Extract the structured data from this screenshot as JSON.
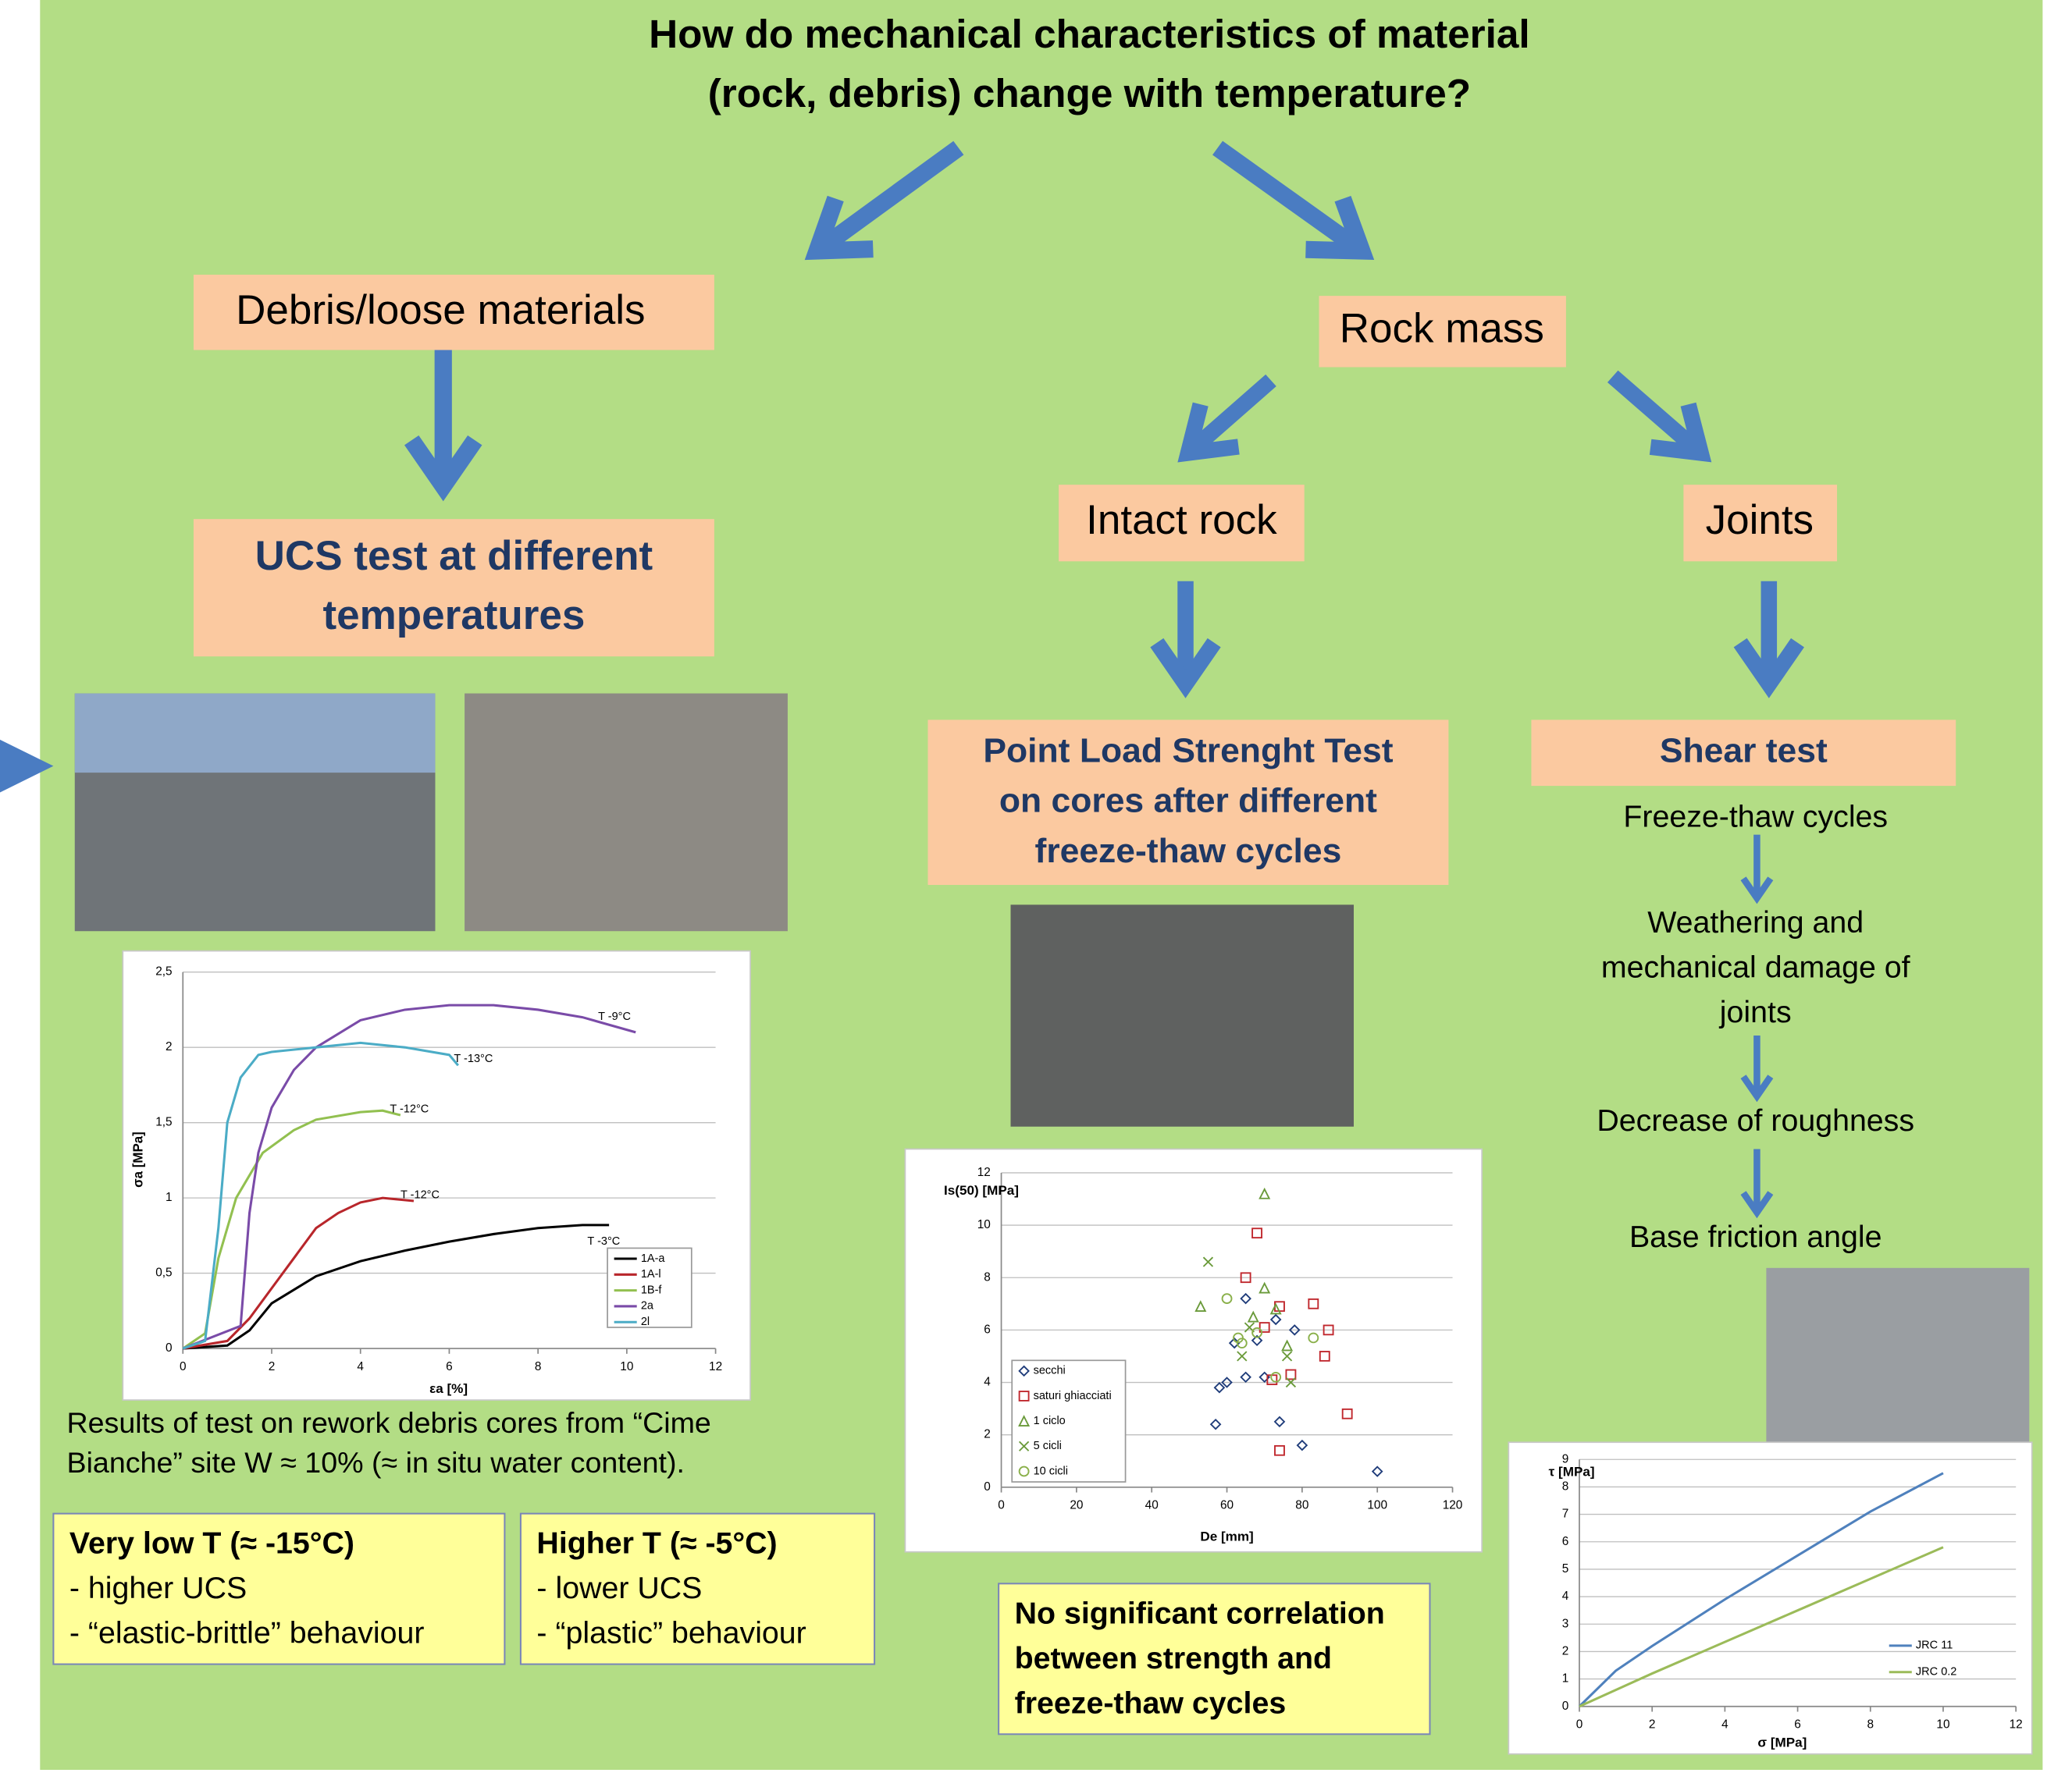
{
  "title": {
    "lines": [
      "How do mechanical characteristics of material",
      "(rock, debris) change with temperature?"
    ]
  },
  "branches": {
    "debris": "Debris/loose materials",
    "rock_mass": "Rock mass",
    "intact_rock": "Intact rock",
    "joints": "Joints"
  },
  "tests": {
    "ucs": [
      "UCS  test at different",
      "temperatures"
    ],
    "point_load": [
      "Point Load Strenght Test",
      "on cores after different",
      "freeze-thaw cycles"
    ],
    "shear": "Shear test"
  },
  "joint_steps": [
    [
      "Freeze-thaw cycles"
    ],
    [
      "Weathering and",
      "mechanical damage of",
      "joints"
    ],
    [
      "Decrease of roughness"
    ],
    [
      "Base friction angle"
    ]
  ],
  "caption": [
    "Results of test on rework debris cores from “Cime",
    "Bianche” site W ≈ 10% (≈ in situ water content)."
  ],
  "low_t": {
    "heading": "Very low T (≈ -15°C)",
    "items": [
      " - higher UCS",
      "- “elastic-brittle” behaviour"
    ]
  },
  "high_t": {
    "heading": "Higher T  (≈ -5°C)",
    "items": [
      " - lower UCS",
      "- “plastic” behaviour"
    ]
  },
  "conclusion": [
    "No significant correlation",
    "between   strength   and",
    "freeze-thaw cycles"
  ],
  "charts": [
    {
      "type": "line",
      "x_label": "εa [%]",
      "y_label": "σa [MPa]",
      "xlim": [
        0,
        12
      ],
      "xticks": [
        0,
        2,
        4,
        6,
        8,
        10,
        12
      ],
      "ylim": [
        0,
        2.5
      ],
      "yticks": [
        0,
        {
          "value": 0.5,
          "label": "0,5"
        },
        1,
        {
          "value": 1.5,
          "label": "1,5"
        },
        2,
        {
          "value": 2.5,
          "label": "2,5"
        }
      ],
      "grid": true,
      "legend": "lower right",
      "annotations": [
        "T -3°C",
        "T -12°C",
        "T -12°C",
        "T -9°C",
        "T -13°C"
      ],
      "series": [
        {
          "name": "1A-a",
          "color": "#000000",
          "x": [
            0,
            1,
            1.5,
            2,
            3,
            4,
            5,
            6,
            7,
            8,
            9,
            9.6
          ],
          "y": [
            0,
            0.02,
            0.12,
            0.3,
            0.48,
            0.58,
            0.65,
            0.71,
            0.76,
            0.8,
            0.82,
            0.82
          ]
        },
        {
          "name": "1A-l",
          "color": "#b8262b",
          "x": [
            0,
            1,
            1.5,
            2,
            2.5,
            3,
            3.5,
            4,
            4.5,
            5.2
          ],
          "y": [
            0,
            0.05,
            0.2,
            0.4,
            0.6,
            0.8,
            0.9,
            0.97,
            1,
            0.98
          ]
        },
        {
          "name": "1B-f",
          "color": "#92c050",
          "x": [
            0,
            0.5,
            0.8,
            1.2,
            1.8,
            2.5,
            3,
            4,
            4.5,
            4.9
          ],
          "y": [
            0,
            0.1,
            0.6,
            1,
            1.3,
            1.45,
            1.52,
            1.57,
            1.58,
            1.55
          ]
        },
        {
          "name": "2a",
          "color": "#7a4ba8",
          "x": [
            0,
            1.3,
            1.5,
            1.7,
            2,
            2.5,
            3,
            4,
            5,
            6,
            7,
            8,
            9,
            10.2
          ],
          "y": [
            0,
            0.15,
            0.9,
            1.3,
            1.6,
            1.85,
            2,
            2.18,
            2.25,
            2.28,
            2.28,
            2.25,
            2.2,
            2.1
          ]
        },
        {
          "name": "2l",
          "color": "#4bacc6",
          "x": [
            0,
            0.5,
            0.8,
            1,
            1.3,
            1.7,
            2,
            3,
            4,
            5,
            6,
            6.2
          ],
          "y": [
            0,
            0.05,
            0.8,
            1.5,
            1.8,
            1.95,
            1.97,
            2,
            2.03,
            2,
            1.95,
            1.88
          ]
        }
      ]
    },
    {
      "type": "scatter",
      "x_label": "De [mm]",
      "y_label": "Is(50) [MPa]",
      "xlim": [
        0,
        120
      ],
      "xticks": [
        0,
        20,
        40,
        60,
        80,
        100,
        120
      ],
      "ylim": [
        0,
        12
      ],
      "yticks": [
        0,
        2,
        4,
        6,
        8,
        10,
        12
      ],
      "grid": true,
      "legend": "lower left",
      "series": [
        {
          "name": "secchi",
          "color": "#1f3c7a",
          "marker": "diamond",
          "x": [
            57,
            58,
            60,
            62,
            65,
            65,
            68,
            70,
            73,
            74,
            78,
            80,
            100
          ],
          "y": [
            2.4,
            3.8,
            4,
            5.5,
            4.2,
            7.2,
            5.6,
            4.2,
            6.4,
            2.5,
            6,
            1.6,
            0.6
          ]
        },
        {
          "name": "saturi ghiacciati",
          "color": "#c0272d",
          "marker": "square",
          "x": [
            65,
            68,
            70,
            72,
            74,
            74,
            77,
            83,
            86,
            87,
            92
          ],
          "y": [
            8,
            9.7,
            6.1,
            4.1,
            6.9,
            1.4,
            4.3,
            7,
            5,
            6,
            2.8
          ]
        },
        {
          "name": "1 ciclo",
          "color": "#6a9a3a",
          "marker": "triangle",
          "x": [
            53,
            67,
            70,
            70,
            73,
            76
          ],
          "y": [
            6.9,
            6.5,
            11.2,
            7.6,
            6.8,
            5.4
          ]
        },
        {
          "name": "5 cicli",
          "color": "#6a9a3a",
          "marker": "x",
          "x": [
            55,
            64,
            66,
            76,
            77
          ],
          "y": [
            8.6,
            5,
            6.1,
            5,
            4
          ]
        },
        {
          "name": "10 cicli",
          "color": "#8ab04a",
          "marker": "circle",
          "x": [
            60,
            63,
            64,
            68,
            73,
            83
          ],
          "y": [
            7.2,
            5.7,
            5.5,
            5.9,
            4.2,
            5.7
          ]
        }
      ]
    },
    {
      "type": "line",
      "x_label": "σ [MPa]",
      "y_label": "τ [MPa]",
      "xlim": [
        0,
        12
      ],
      "xticks": [
        0,
        2,
        4,
        6,
        8,
        10,
        12
      ],
      "ylim": [
        0,
        9
      ],
      "yticks": [
        0,
        1,
        2,
        3,
        4,
        5,
        6,
        7,
        8,
        9
      ],
      "grid": true,
      "legend": "lower right",
      "series": [
        {
          "name": "JRC 11",
          "color": "#4f81bd",
          "x": [
            0,
            1,
            2,
            4,
            6,
            8,
            10
          ],
          "y": [
            0,
            1.3,
            2.2,
            3.9,
            5.5,
            7.1,
            8.5
          ]
        },
        {
          "name": "JRC 0.2",
          "color": "#9bbb59",
          "x": [
            0,
            2,
            4,
            6,
            8,
            10
          ],
          "y": [
            0,
            1.2,
            2.35,
            3.5,
            4.65,
            5.8
          ]
        }
      ]
    }
  ]
}
